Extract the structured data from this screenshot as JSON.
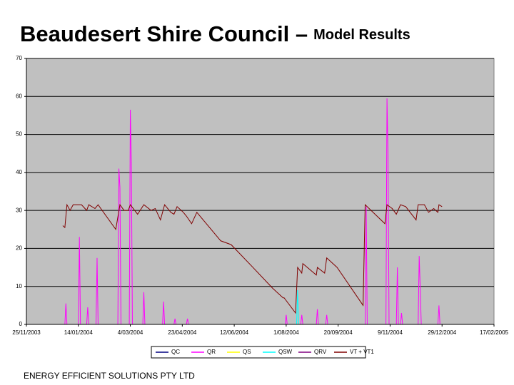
{
  "chart_data": {
    "type": "line",
    "title": "Beaudesert Shire Council –",
    "subtitle": "Model Results",
    "xlim": [
      "25/11/2003",
      "17/02/2005"
    ],
    "xticks": [
      "25/11/2003",
      "14/01/2004",
      "4/03/2004",
      "23/04/2004",
      "12/06/2004",
      "1/08/2004",
      "20/09/2004",
      "9/11/2004",
      "29/12/2004",
      "17/02/2005"
    ],
    "ylim": [
      0,
      70
    ],
    "yticks": [
      0,
      10,
      20,
      30,
      40,
      50,
      60,
      70
    ],
    "grid": true,
    "plot_background": "#c0c0c0",
    "legend": "bottom",
    "series": [
      {
        "name": "QC",
        "color": "#000080",
        "x": [
          "30/12/2003",
          "29/12/2004"
        ],
        "values": [
          0,
          0
        ]
      },
      {
        "name": "QR",
        "color": "#ff00ff",
        "x": [
          "1/01/2004",
          "2/01/2004",
          "3/01/2004",
          "14/01/2004",
          "15/01/2004",
          "16/01/2004",
          "22/01/2004",
          "23/01/2004",
          "24/01/2004",
          "31/01/2004",
          "1/02/2004",
          "2/02/2004",
          "21/02/2004",
          "22/02/2004",
          "23/02/2004",
          "24/02/2004",
          "3/03/2004",
          "4/03/2004",
          "5/03/2004",
          "6/03/2004",
          "16/03/2004",
          "17/03/2004",
          "18/03/2004",
          "4/04/2004",
          "5/04/2004",
          "6/04/2004",
          "15/04/2004",
          "16/04/2004",
          "17/04/2004",
          "27/04/2004",
          "28/04/2004",
          "29/04/2004",
          "31/07/2004",
          "1/08/2004",
          "2/08/2004",
          "15/08/2004",
          "16/08/2004",
          "17/08/2004",
          "30/08/2004",
          "31/08/2004",
          "1/09/2004",
          "8/09/2004",
          "9/09/2004",
          "10/09/2004",
          "16/10/2004",
          "17/10/2004",
          "18/10/2004",
          "5/11/2004",
          "6/11/2004",
          "7/11/2004",
          "8/11/2004",
          "15/11/2004",
          "16/11/2004",
          "17/11/2004",
          "19/11/2004",
          "20/11/2004",
          "21/11/2004",
          "6/12/2004",
          "7/12/2004",
          "8/12/2004",
          "9/12/2004",
          "25/12/2004",
          "26/12/2004",
          "27/12/2004",
          "29/12/2004"
        ],
        "values": [
          0,
          5.5,
          0,
          0,
          23,
          0,
          0,
          4.5,
          0,
          0,
          17.5,
          0,
          0,
          41,
          36,
          0,
          0,
          56.5,
          42.5,
          0,
          0,
          8.5,
          0,
          0,
          6,
          0,
          0,
          1.5,
          0,
          0,
          1.5,
          0,
          0,
          2.5,
          0,
          0,
          2.5,
          0,
          0,
          4,
          0,
          0,
          2.5,
          0,
          0,
          31,
          0,
          0,
          59.5,
          45,
          0,
          0,
          15,
          0,
          0,
          3,
          0,
          0,
          18,
          9.5,
          0,
          0,
          5,
          0,
          0
        ]
      },
      {
        "name": "QS",
        "color": "#ffff00",
        "x": [
          "30/12/2003",
          "29/12/2004"
        ],
        "values": [
          0,
          0
        ]
      },
      {
        "name": "QSW",
        "color": "#00ffff",
        "x": [
          "11/08/2004",
          "12/08/2004",
          "13/08/2004"
        ],
        "values": [
          0,
          9,
          0
        ]
      },
      {
        "name": "QRV",
        "color": "#800080",
        "x": [
          "1/01/2004",
          "29/12/2004"
        ],
        "values": [
          0,
          0
        ]
      },
      {
        "name": "VT + VT1",
        "color": "#800000",
        "x": [
          "30/12/2003",
          "1/01/2004",
          "3/01/2004",
          "6/01/2004",
          "9/01/2004",
          "17/01/2004",
          "22/01/2004",
          "24/01/2004",
          "30/01/2004",
          "2/02/2004",
          "19/02/2004",
          "23/02/2004",
          "27/02/2004",
          "2/03/2004",
          "4/03/2004",
          "11/03/2004",
          "17/03/2004",
          "24/03/2004",
          "28/03/2004",
          "2/04/2004",
          "6/04/2004",
          "12/04/2004",
          "15/04/2004",
          "18/04/2004",
          "24/04/2004",
          "27/04/2004",
          "2/05/2004",
          "7/05/2004",
          "30/05/2004",
          "9/06/2004",
          "30/06/2004",
          "19/07/2004",
          "29/07/2004",
          "30/07/2004",
          "10/08/2004",
          "12/08/2004",
          "16/08/2004",
          "17/08/2004",
          "30/08/2004",
          "31/08/2004",
          "7/09/2004",
          "9/09/2004",
          "19/09/2004",
          "14/10/2004",
          "16/10/2004",
          "4/11/2004",
          "6/11/2004",
          "11/11/2004",
          "15/11/2004",
          "19/11/2004",
          "24/11/2004",
          "4/12/2004",
          "6/12/2004",
          "12/12/2004",
          "16/12/2004",
          "21/12/2004",
          "25/12/2004",
          "26/12/2004",
          "29/12/2004"
        ],
        "values": [
          26,
          25.5,
          31.5,
          30,
          31.5,
          31.5,
          30,
          31.5,
          30.5,
          31.5,
          25,
          31.5,
          30,
          30,
          31.5,
          29,
          31.5,
          30,
          30.5,
          27.5,
          31.5,
          29.5,
          29,
          31,
          29.5,
          28.5,
          26.5,
          29.5,
          22,
          21,
          15,
          9.5,
          7,
          7,
          3,
          15,
          13.5,
          16,
          13,
          15,
          13.5,
          17.5,
          15,
          5,
          31.5,
          26.5,
          31.5,
          30.5,
          29,
          31.5,
          31,
          27.5,
          31.5,
          31.5,
          29.5,
          30.5,
          29.5,
          31.5,
          31
        ]
      }
    ]
  },
  "footer": "ENERGY EFFICIENT SOLUTIONS PTY LTD"
}
